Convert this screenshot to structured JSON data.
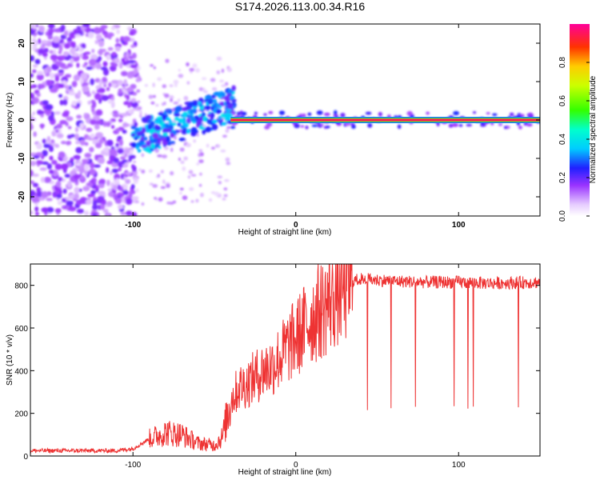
{
  "title": "S174.2026.113.00.34.R16",
  "chart_data": [
    {
      "type": "heatmap",
      "name": "spectrogram",
      "xlabel": "Height of straight line (km)",
      "ylabel": "Frequency (Hz)",
      "xlim": [
        -163,
        150
      ],
      "ylim": [
        -25,
        25
      ],
      "xticks": [
        -100,
        0,
        100
      ],
      "yticks": [
        -20,
        -10,
        0,
        10,
        20
      ],
      "colorbar": {
        "label": "Normalized spectral amplitude",
        "range": [
          0,
          1
        ],
        "ticks": [
          "0.0",
          "0.2",
          "0.4",
          "0.6",
          "0.8"
        ],
        "tick_values": [
          0.0,
          0.2,
          0.4,
          0.6,
          0.8
        ]
      },
      "features": [
        {
          "desc": "strong carrier line",
          "x_range": [
            -40,
            150
          ],
          "freq": 0,
          "amplitude": 0.95
        },
        {
          "desc": "scattered weak noise",
          "x_range": [
            -163,
            -100
          ],
          "freq_range": [
            -25,
            25
          ],
          "amplitude": 0.15
        },
        {
          "desc": "emerging signal",
          "x_range": [
            -100,
            -40
          ],
          "freq_range": [
            -10,
            6
          ],
          "amplitude": 0.35
        }
      ]
    },
    {
      "type": "line",
      "name": "snr",
      "xlabel": "Height of straight line (km)",
      "ylabel": "SNR (10 * v/v)",
      "xlim": [
        -163,
        150
      ],
      "ylim": [
        0,
        900
      ],
      "xticks": [
        -100,
        0,
        100
      ],
      "yticks": [
        0,
        200,
        400,
        600,
        800
      ],
      "color": "#ee3333",
      "x": [
        -163,
        -150,
        -130,
        -110,
        -100,
        -90,
        -80,
        -70,
        -60,
        -50,
        -45,
        -40,
        -35,
        -30,
        -25,
        -20,
        -15,
        -10,
        -5,
        0,
        5,
        10,
        15,
        20,
        25,
        30,
        35,
        40,
        50,
        60,
        80,
        100,
        120,
        150
      ],
      "values": [
        25,
        25,
        25,
        25,
        35,
        80,
        110,
        100,
        60,
        50,
        90,
        260,
        320,
        340,
        370,
        400,
        420,
        460,
        510,
        550,
        600,
        650,
        680,
        720,
        770,
        800,
        820,
        830,
        825,
        820,
        815,
        815,
        810,
        815
      ]
    }
  ]
}
